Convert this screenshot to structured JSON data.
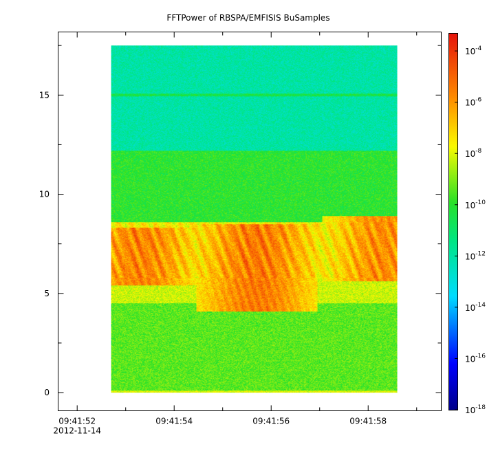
{
  "chart_data": {
    "type": "heatmap",
    "title": "FFTPower of RBSPA/EMFISIS  BuSamples",
    "xlabel": "",
    "ylabel": "",
    "x_ticks": [
      {
        "time": "09:41:52",
        "date": "2012-11-14"
      },
      {
        "time": "09:41:54",
        "date": ""
      },
      {
        "time": "09:41:56",
        "date": ""
      },
      {
        "time": "09:41:58",
        "date": ""
      }
    ],
    "x_range": [
      "09:41:51.6",
      "09:41:59.5"
    ],
    "data_x_range": [
      "09:41:52.7",
      "09:41:58.6"
    ],
    "y_ticks": [
      0,
      5,
      10,
      15
    ],
    "ylim": [
      -0.9,
      18.2
    ],
    "data_y_range": [
      0,
      17.5
    ],
    "colorbar": {
      "scale": "log",
      "labels": [
        {
          "base": "10",
          "exp": "-4"
        },
        {
          "base": "10",
          "exp": "-6"
        },
        {
          "base": "10",
          "exp": "-8"
        },
        {
          "base": "10",
          "exp": "-10"
        },
        {
          "base": "10",
          "exp": "-12"
        },
        {
          "base": "10",
          "exp": "-14"
        },
        {
          "base": "10",
          "exp": "-16"
        },
        {
          "base": "10",
          "exp": "-18"
        }
      ],
      "range_exponents": [
        -18,
        -3.3
      ]
    },
    "features": [
      {
        "name": "line",
        "y": 15.0,
        "level": -10.5
      },
      {
        "name": "band",
        "y_from": 12.2,
        "y_to": 17.5,
        "level": -12.0
      },
      {
        "name": "band",
        "y_from": 8.6,
        "y_to": 12.2,
        "level": -10.0
      },
      {
        "name": "band",
        "y_from": 5.8,
        "y_to": 8.6,
        "level": -7.5
      },
      {
        "name": "band",
        "y_from": 4.5,
        "y_to": 5.8,
        "level": -8.2
      },
      {
        "name": "band",
        "y_from": 0,
        "y_to": 4.5,
        "level": -9.4
      },
      {
        "name": "burst",
        "x": "09:41:53.3",
        "y_from": 5.8,
        "y_to": 8.0,
        "level": -6.0
      },
      {
        "name": "burst",
        "x": "09:41:55.7",
        "y_from": 4.5,
        "y_to": 8.2,
        "level": -5.8
      },
      {
        "name": "burst",
        "x": "09:41:58.3",
        "y_from": 6.0,
        "y_to": 8.6,
        "level": -6.2
      }
    ]
  }
}
